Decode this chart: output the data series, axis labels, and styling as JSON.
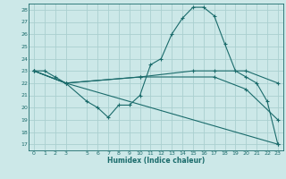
{
  "title": "",
  "xlabel": "Humidex (Indice chaleur)",
  "bg_color": "#cce8e8",
  "line_color": "#1a6b6b",
  "grid_color": "#aad0d0",
  "xlim": [
    -0.5,
    23.5
  ],
  "ylim": [
    16.5,
    28.5
  ],
  "yticks": [
    17,
    18,
    19,
    20,
    21,
    22,
    23,
    24,
    25,
    26,
    27,
    28
  ],
  "xticks": [
    0,
    1,
    2,
    3,
    5,
    6,
    7,
    8,
    9,
    10,
    11,
    12,
    13,
    14,
    15,
    16,
    17,
    18,
    19,
    20,
    21,
    22,
    23
  ],
  "series": [
    {
      "x": [
        0,
        1,
        2,
        3,
        5,
        6,
        7,
        8,
        9,
        10,
        11,
        12,
        13,
        14,
        15,
        16,
        17,
        18,
        19,
        20,
        21,
        22,
        23
      ],
      "y": [
        23,
        23,
        22.5,
        22,
        20.5,
        20,
        19.2,
        20.2,
        20.2,
        21.0,
        23.5,
        24.0,
        26.0,
        27.3,
        28.2,
        28.2,
        27.5,
        25.2,
        23.0,
        22.5,
        22.0,
        20.5,
        17.0
      ]
    },
    {
      "x": [
        0,
        3,
        10,
        15,
        17,
        20,
        23
      ],
      "y": [
        23,
        22,
        22.5,
        23.0,
        23.0,
        23.0,
        22.0
      ]
    },
    {
      "x": [
        0,
        3,
        10,
        17,
        20,
        23
      ],
      "y": [
        23,
        22,
        22.5,
        22.5,
        21.5,
        19.0
      ]
    },
    {
      "x": [
        0,
        3,
        23
      ],
      "y": [
        23,
        22,
        17.0
      ]
    }
  ]
}
